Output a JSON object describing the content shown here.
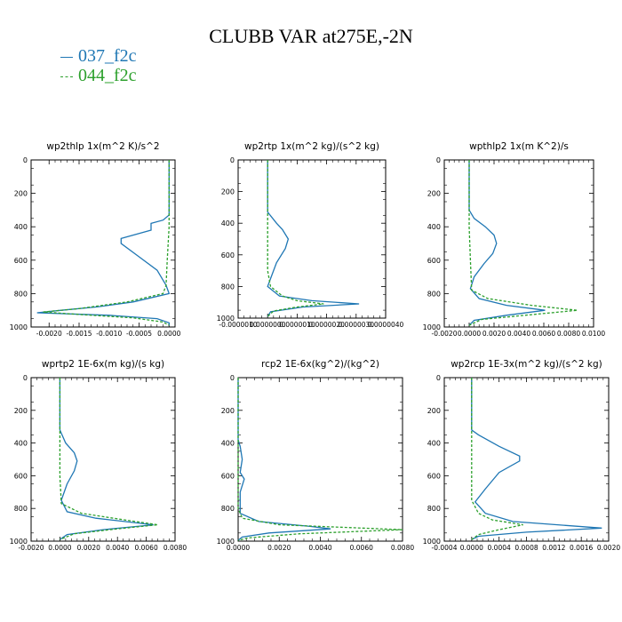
{
  "figure": {
    "title": "CLUBB VAR at275E,-2N"
  },
  "legend": [
    {
      "name": "037_f2c",
      "color": "#1f77b4",
      "style": "solid"
    },
    {
      "name": "044_f2c",
      "color": "#2ca02c",
      "style": "dashed"
    }
  ],
  "chart_data": [
    {
      "type": "line",
      "title": "wp2thlp  1x(m^2 K)/s^2",
      "xlim": [
        -0.0023,
        0.0001
      ],
      "ylim": [
        1000,
        0
      ],
      "xticks": [
        -0.002,
        -0.0015,
        -0.001,
        -0.0005,
        0
      ],
      "xtick_labels": [
        "-0.0020",
        "-0.0015",
        "-0.0010",
        "-0.0005",
        "0.0000"
      ],
      "yticks": [
        0,
        200,
        400,
        600,
        800,
        1000
      ],
      "series": [
        {
          "name": "037_f2c",
          "points": [
            [
              0,
              0
            ],
            [
              0,
              200
            ],
            [
              0,
              330
            ],
            [
              -0.0001,
              360
            ],
            [
              -0.0003,
              380
            ],
            [
              -0.0003,
              420
            ],
            [
              -0.0008,
              470
            ],
            [
              -0.0008,
              500
            ],
            [
              -0.0005,
              580
            ],
            [
              -0.0002,
              660
            ],
            [
              -5e-05,
              750
            ],
            [
              0,
              800
            ],
            [
              -0.0006,
              850
            ],
            [
              -0.0012,
              880
            ],
            [
              -0.0018,
              900
            ],
            [
              -0.0022,
              915
            ],
            [
              -0.001,
              930
            ],
            [
              -0.0002,
              950
            ],
            [
              0,
              975
            ],
            [
              0,
              990
            ]
          ]
        },
        {
          "name": "044_f2c",
          "points": [
            [
              0,
              0
            ],
            [
              0,
              200
            ],
            [
              0,
              400
            ],
            [
              -3e-05,
              600
            ],
            [
              -5e-05,
              750
            ],
            [
              -0.0001,
              800
            ],
            [
              -0.0007,
              850
            ],
            [
              -0.0015,
              890
            ],
            [
              -0.0021,
              910
            ],
            [
              -0.0015,
              925
            ],
            [
              -0.0006,
              945
            ],
            [
              -0.0001,
              970
            ],
            [
              0,
              990
            ]
          ]
        }
      ]
    },
    {
      "type": "line",
      "title": "wp2rtp  1x(m^2 kg)/(s^2 kg)",
      "xlim": [
        -1e-06,
        4e-06
      ],
      "ylim": [
        1000,
        0
      ],
      "xticks": [
        -1e-06,
        0,
        1e-06,
        2e-06,
        3e-06,
        4e-06
      ],
      "xtick_labels": [
        "-0.0000010",
        "0.0000000",
        "0.0000010",
        "0.0000020",
        "0.0000030",
        "0.0000040"
      ],
      "yticks": [
        0,
        200,
        400,
        600,
        800,
        1000
      ],
      "series": [
        {
          "name": "037_f2c",
          "points": [
            [
              0,
              0
            ],
            [
              0,
              200
            ],
            [
              0,
              330
            ],
            [
              3e-07,
              400
            ],
            [
              5e-07,
              440
            ],
            [
              7e-07,
              500
            ],
            [
              6e-07,
              560
            ],
            [
              3e-07,
              650
            ],
            [
              1e-07,
              750
            ],
            [
              0,
              800
            ],
            [
              4e-07,
              860
            ],
            [
              1.5e-06,
              890
            ],
            [
              3.1e-06,
              910
            ],
            [
              1.2e-06,
              930
            ],
            [
              1e-07,
              960
            ],
            [
              0,
              990
            ]
          ]
        },
        {
          "name": "044_f2c",
          "points": [
            [
              0,
              0
            ],
            [
              0,
              200
            ],
            [
              0,
              400
            ],
            [
              0,
              700
            ],
            [
              1e-07,
              800
            ],
            [
              5e-07,
              860
            ],
            [
              1e-06,
              890
            ],
            [
              1.9e-06,
              910
            ],
            [
              1e-06,
              930
            ],
            [
              2e-07,
              955
            ],
            [
              0,
              990
            ]
          ]
        }
      ]
    },
    {
      "type": "line",
      "title": "wpthlp2  1x(m K^2)/s",
      "xlim": [
        -0.002,
        0.01
      ],
      "ylim": [
        1000,
        0
      ],
      "xticks": [
        -0.002,
        0,
        0.002,
        0.004,
        0.006,
        0.008,
        0.01
      ],
      "xtick_labels": [
        "-0.0020",
        "0.0000",
        "0.0020",
        "0.0040",
        "0.0060",
        "0.0080",
        "0.0100"
      ],
      "yticks": [
        0,
        200,
        400,
        600,
        800,
        1000
      ],
      "series": [
        {
          "name": "037_f2c",
          "points": [
            [
              0,
              0
            ],
            [
              0,
              200
            ],
            [
              0,
              300
            ],
            [
              0.0004,
              350
            ],
            [
              0.0013,
              400
            ],
            [
              0.002,
              450
            ],
            [
              0.0022,
              500
            ],
            [
              0.0019,
              560
            ],
            [
              0.0012,
              620
            ],
            [
              0.0004,
              700
            ],
            [
              0.0001,
              770
            ],
            [
              0.0008,
              830
            ],
            [
              0.003,
              870
            ],
            [
              0.0061,
              900
            ],
            [
              0.003,
              930
            ],
            [
              0.0004,
              960
            ],
            [
              0,
              990
            ]
          ]
        },
        {
          "name": "044_f2c",
          "points": [
            [
              0,
              0
            ],
            [
              0,
              200
            ],
            [
              0,
              400
            ],
            [
              0.0001,
              600
            ],
            [
              0.0002,
              780
            ],
            [
              0.0015,
              830
            ],
            [
              0.005,
              870
            ],
            [
              0.0087,
              900
            ],
            [
              0.0045,
              930
            ],
            [
              0.001,
              955
            ],
            [
              0,
              990
            ]
          ]
        }
      ]
    },
    {
      "type": "line",
      "title": "wprtp2  1E-6x(m kg)/(s kg)",
      "xlim": [
        -0.002,
        0.008
      ],
      "ylim": [
        1000,
        0
      ],
      "xticks": [
        -0.002,
        0,
        0.002,
        0.004,
        0.006,
        0.008
      ],
      "xtick_labels": [
        "-0.0020",
        "0.0000",
        "0.0020",
        "0.0040",
        "0.0060",
        "0.0080"
      ],
      "yticks": [
        0,
        200,
        400,
        600,
        800,
        1000
      ],
      "series": [
        {
          "name": "037_f2c",
          "points": [
            [
              0,
              0
            ],
            [
              0,
              200
            ],
            [
              0,
              320
            ],
            [
              0.0004,
              400
            ],
            [
              0.001,
              460
            ],
            [
              0.0012,
              510
            ],
            [
              0.001,
              570
            ],
            [
              0.0005,
              650
            ],
            [
              0.0001,
              750
            ],
            [
              0.0005,
              820
            ],
            [
              0.0025,
              860
            ],
            [
              0.0065,
              900
            ],
            [
              0.003,
              930
            ],
            [
              0.0005,
              960
            ],
            [
              0,
              990
            ]
          ]
        },
        {
          "name": "044_f2c",
          "points": [
            [
              0,
              0
            ],
            [
              0,
              200
            ],
            [
              0,
              400
            ],
            [
              0,
              600
            ],
            [
              0.0001,
              770
            ],
            [
              0.0015,
              830
            ],
            [
              0.0045,
              870
            ],
            [
              0.0068,
              900
            ],
            [
              0.004,
              925
            ],
            [
              0.001,
              955
            ],
            [
              0,
              990
            ]
          ]
        }
      ]
    },
    {
      "type": "line",
      "title": "rcp2  1E-6x(kg^2)/(kg^2)",
      "xlim": [
        0,
        0.008
      ],
      "ylim": [
        1000,
        0
      ],
      "xticks": [
        0,
        0.002,
        0.004,
        0.006,
        0.008
      ],
      "xtick_labels": [
        "0.0000",
        "0.0020",
        "0.0040",
        "0.0060",
        "0.0080"
      ],
      "yticks": [
        0,
        200,
        400,
        600,
        800,
        1000
      ],
      "series": [
        {
          "name": "037_f2c",
          "points": [
            [
              0,
              0
            ],
            [
              0,
              380
            ],
            [
              0.0001,
              420
            ],
            [
              0.0002,
              500
            ],
            [
              0.0001,
              580
            ],
            [
              0.0003,
              620
            ],
            [
              0.0002,
              660
            ],
            [
              0.0001,
              700
            ],
            [
              0.0001,
              830
            ],
            [
              0.001,
              880
            ],
            [
              0.0035,
              910
            ],
            [
              0.0045,
              925
            ],
            [
              0.0015,
              950
            ],
            [
              0.0002,
              975
            ],
            [
              0,
              995
            ]
          ]
        },
        {
          "name": "044_f2c",
          "points": [
            [
              0,
              0
            ],
            [
              0,
              400
            ],
            [
              0,
              600
            ],
            [
              0,
              800
            ],
            [
              0.0002,
              860
            ],
            [
              0.002,
              900
            ],
            [
              0.008,
              930
            ],
            [
              0.003,
              955
            ],
            [
              0.0005,
              980
            ],
            [
              0,
              995
            ]
          ]
        }
      ]
    },
    {
      "type": "line",
      "title": "wp2rcp  1E-3x(m^2 kg)/(s^2 kg)",
      "xlim": [
        -0.0004,
        0.002
      ],
      "ylim": [
        1000,
        0
      ],
      "xticks": [
        -0.0004,
        0,
        0.0004,
        0.0008,
        0.0012,
        0.0016,
        0.002
      ],
      "xtick_labels": [
        "-0.0004",
        "0.0000",
        "0.0004",
        "0.0008",
        "0.0012",
        "0.0016",
        "0.0020"
      ],
      "yticks": [
        0,
        200,
        400,
        600,
        800,
        1000
      ],
      "series": [
        {
          "name": "037_f2c",
          "points": [
            [
              0,
              0
            ],
            [
              0,
              320
            ],
            [
              0.0001,
              350
            ],
            [
              0.0004,
              420
            ],
            [
              0.0007,
              480
            ],
            [
              0.0007,
              510
            ],
            [
              0.0004,
              580
            ],
            [
              0.0002,
              680
            ],
            [
              5e-05,
              760
            ],
            [
              0.0002,
              830
            ],
            [
              0.0006,
              880
            ],
            [
              0.0019,
              920
            ],
            [
              0.0008,
              945
            ],
            [
              0.0001,
              970
            ],
            [
              0,
              990
            ]
          ]
        },
        {
          "name": "044_f2c",
          "points": [
            [
              0,
              0
            ],
            [
              0,
              300
            ],
            [
              0,
              500
            ],
            [
              0,
              750
            ],
            [
              0.0001,
              830
            ],
            [
              0.0003,
              870
            ],
            [
              0.00075,
              900
            ],
            [
              0.0004,
              930
            ],
            [
              0.0001,
              960
            ],
            [
              0,
              990
            ]
          ]
        }
      ]
    }
  ]
}
